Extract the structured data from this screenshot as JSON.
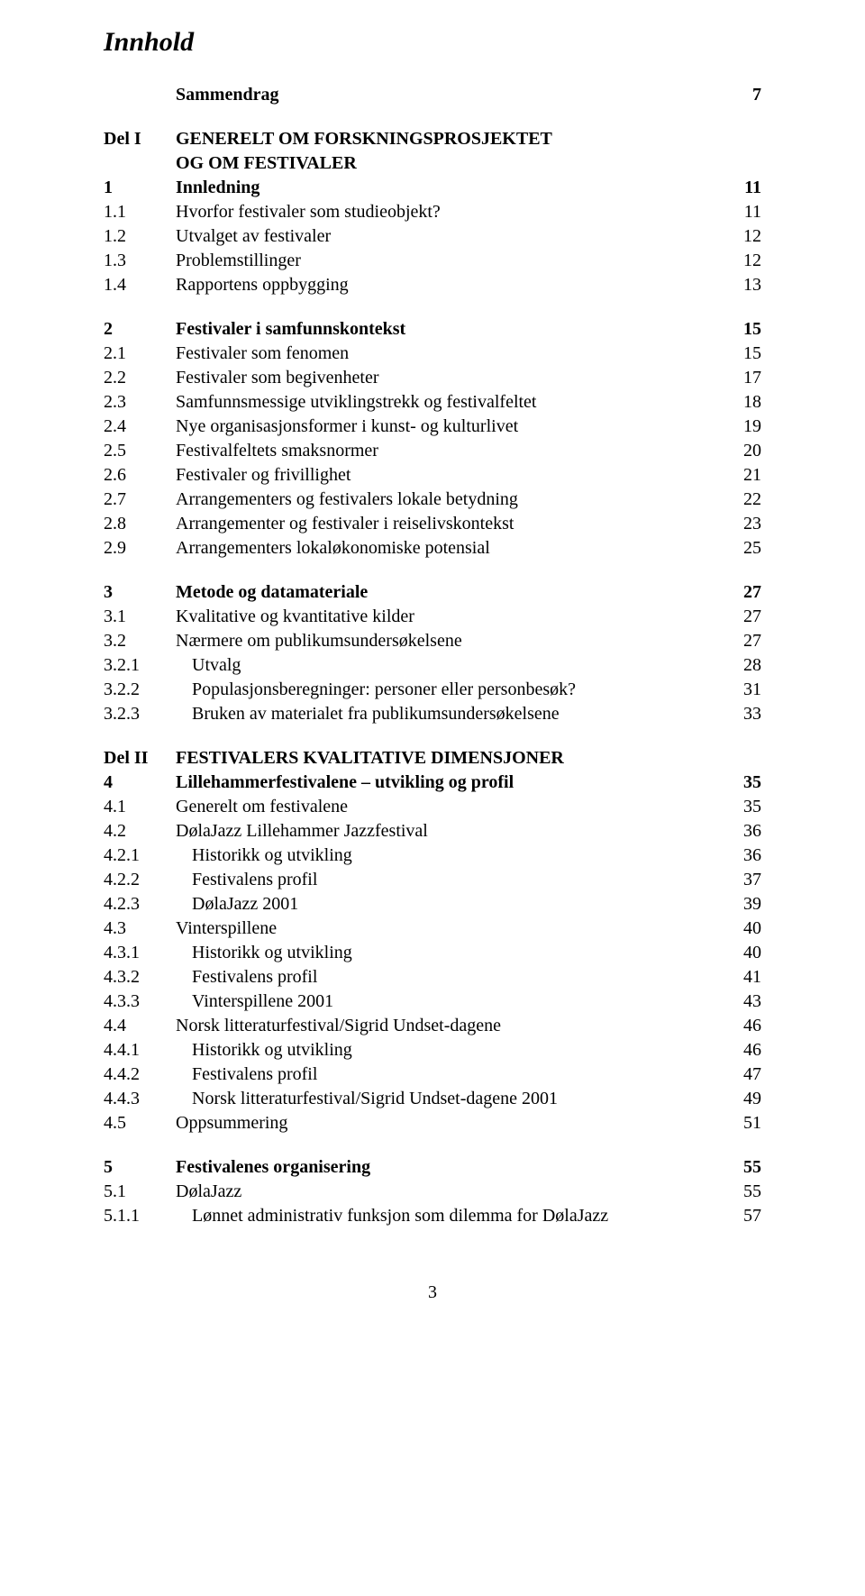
{
  "title": "Innhold",
  "footer_page": "3",
  "rows": [
    {
      "type": "row",
      "num": "",
      "text": "Sammendrag",
      "page": "7",
      "bold": true,
      "indent": 0,
      "preSpace": "none",
      "numIndent": true
    },
    {
      "type": "space",
      "size": "md"
    },
    {
      "type": "row",
      "num": "Del I",
      "text": "GENERELT OM FORSKNINGSPROSJEKTET",
      "page": "",
      "bold": true,
      "indent": 0
    },
    {
      "type": "row",
      "num": "",
      "text": "OG OM FESTIVALER",
      "page": "",
      "bold": true,
      "indent": 0,
      "numIndent": true
    },
    {
      "type": "row",
      "num": "1",
      "text": "Innledning",
      "page": "11",
      "bold": true,
      "indent": 0
    },
    {
      "type": "row",
      "num": "1.1",
      "text": "Hvorfor festivaler som studieobjekt?",
      "page": "11",
      "bold": false,
      "indent": 0
    },
    {
      "type": "row",
      "num": "1.2",
      "text": "Utvalget av festivaler",
      "page": "12",
      "bold": false,
      "indent": 0
    },
    {
      "type": "row",
      "num": "1.3",
      "text": "Problemstillinger",
      "page": "12",
      "bold": false,
      "indent": 0
    },
    {
      "type": "row",
      "num": "1.4",
      "text": "Rapportens oppbygging",
      "page": "13",
      "bold": false,
      "indent": 0
    },
    {
      "type": "space",
      "size": "md"
    },
    {
      "type": "row",
      "num": "2",
      "text": "Festivaler i samfunnskontekst",
      "page": "15",
      "bold": true,
      "indent": 0
    },
    {
      "type": "row",
      "num": "2.1",
      "text": "Festivaler som fenomen",
      "page": "15",
      "bold": false,
      "indent": 0
    },
    {
      "type": "row",
      "num": "2.2",
      "text": "Festivaler som begivenheter",
      "page": "17",
      "bold": false,
      "indent": 0
    },
    {
      "type": "row",
      "num": "2.3",
      "text": "Samfunnsmessige utviklingstrekk og festivalfeltet",
      "page": "18",
      "bold": false,
      "indent": 0
    },
    {
      "type": "row",
      "num": "2.4",
      "text": "Nye organisasjonsformer i kunst- og kulturlivet",
      "page": "19",
      "bold": false,
      "indent": 0
    },
    {
      "type": "row",
      "num": "2.5",
      "text": "Festivalfeltets smaksnormer",
      "page": "20",
      "bold": false,
      "indent": 0
    },
    {
      "type": "row",
      "num": "2.6",
      "text": "Festivaler og frivillighet",
      "page": "21",
      "bold": false,
      "indent": 0
    },
    {
      "type": "row",
      "num": "2.7",
      "text": "Arrangementers og festivalers lokale betydning",
      "page": "22",
      "bold": false,
      "indent": 0
    },
    {
      "type": "row",
      "num": "2.8",
      "text": "Arrangementer og festivaler i reiselivskontekst",
      "page": "23",
      "bold": false,
      "indent": 0
    },
    {
      "type": "row",
      "num": "2.9",
      "text": "Arrangementers lokaløkonomiske potensial",
      "page": "25",
      "bold": false,
      "indent": 0
    },
    {
      "type": "space",
      "size": "md"
    },
    {
      "type": "row",
      "num": "3",
      "text": "Metode og datamateriale",
      "page": "27",
      "bold": true,
      "indent": 0
    },
    {
      "type": "row",
      "num": "3.1",
      "text": "Kvalitative og kvantitative kilder",
      "page": "27",
      "bold": false,
      "indent": 0
    },
    {
      "type": "row",
      "num": "3.2",
      "text": "Nærmere om publikumsundersøkelsene",
      "page": "27",
      "bold": false,
      "indent": 0
    },
    {
      "type": "row",
      "num": "3.2.1",
      "text": "Utvalg",
      "page": "28",
      "bold": false,
      "indent": 1
    },
    {
      "type": "row",
      "num": "3.2.2",
      "text": "Populasjonsberegninger: personer eller personbesøk?",
      "page": "31",
      "bold": false,
      "indent": 1
    },
    {
      "type": "row",
      "num": "3.2.3",
      "text": "Bruken av materialet fra publikumsundersøkelsene",
      "page": "33",
      "bold": false,
      "indent": 1
    },
    {
      "type": "space",
      "size": "md"
    },
    {
      "type": "row",
      "num": "Del II",
      "text": "FESTIVALERS KVALITATIVE DIMENSJONER",
      "page": "",
      "bold": true,
      "indent": 0
    },
    {
      "type": "row",
      "num": "4",
      "text": "Lillehammerfestivalene – utvikling og profil",
      "page": "35",
      "bold": true,
      "indent": 0
    },
    {
      "type": "row",
      "num": "4.1",
      "text": "Generelt om festivalene",
      "page": "35",
      "bold": false,
      "indent": 0
    },
    {
      "type": "row",
      "num": "4.2",
      "text": "DølaJazz Lillehammer Jazzfestival",
      "page": "36",
      "bold": false,
      "indent": 0
    },
    {
      "type": "row",
      "num": "4.2.1",
      "text": "Historikk og utvikling",
      "page": "36",
      "bold": false,
      "indent": 1
    },
    {
      "type": "row",
      "num": "4.2.2",
      "text": "Festivalens profil",
      "page": "37",
      "bold": false,
      "indent": 1
    },
    {
      "type": "row",
      "num": "4.2.3",
      "text": "DølaJazz 2001",
      "page": "39",
      "bold": false,
      "indent": 1
    },
    {
      "type": "row",
      "num": "4.3",
      "text": "Vinterspillene",
      "page": "40",
      "bold": false,
      "indent": 0
    },
    {
      "type": "row",
      "num": "4.3.1",
      "text": "Historikk og utvikling",
      "page": "40",
      "bold": false,
      "indent": 1
    },
    {
      "type": "row",
      "num": "4.3.2",
      "text": "Festivalens profil",
      "page": "41",
      "bold": false,
      "indent": 1
    },
    {
      "type": "row",
      "num": "4.3.3",
      "text": "Vinterspillene 2001",
      "page": "43",
      "bold": false,
      "indent": 1
    },
    {
      "type": "row",
      "num": "4.4",
      "text": "Norsk litteraturfestival/Sigrid Undset-dagene",
      "page": "46",
      "bold": false,
      "indent": 0
    },
    {
      "type": "row",
      "num": "4.4.1",
      "text": "Historikk og utvikling",
      "page": "46",
      "bold": false,
      "indent": 1
    },
    {
      "type": "row",
      "num": "4.4.2",
      "text": "Festivalens profil",
      "page": "47",
      "bold": false,
      "indent": 1
    },
    {
      "type": "row",
      "num": "4.4.3",
      "text": "Norsk litteraturfestival/Sigrid Undset-dagene 2001",
      "page": "49",
      "bold": false,
      "indent": 1
    },
    {
      "type": "row",
      "num": "4.5",
      "text": "Oppsummering",
      "page": "51",
      "bold": false,
      "indent": 0
    },
    {
      "type": "space",
      "size": "md"
    },
    {
      "type": "row",
      "num": "5",
      "text": "Festivalenes organisering",
      "page": "55",
      "bold": true,
      "indent": 0
    },
    {
      "type": "row",
      "num": "5.1",
      "text": "DølaJazz",
      "page": "55",
      "bold": false,
      "indent": 0
    },
    {
      "type": "row",
      "num": "5.1.1",
      "text": "Lønnet administrativ funksjon som dilemma for DølaJazz",
      "page": "57",
      "bold": false,
      "indent": 1
    }
  ]
}
